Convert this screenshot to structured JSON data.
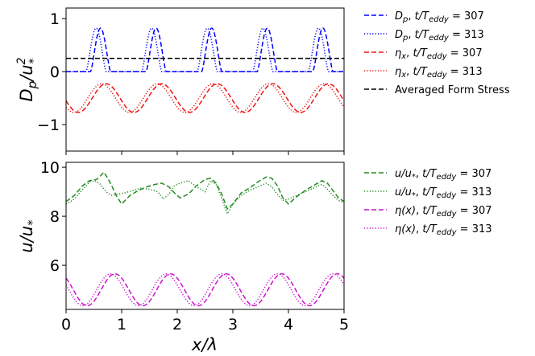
{
  "chart_data": [
    {
      "type": "line",
      "ylabel": "D_p/u_*^2",
      "xlim": [
        0,
        5
      ],
      "ylim": [
        -1.5,
        1.2
      ],
      "yticks": [
        -1,
        0,
        1
      ],
      "grid": false,
      "legend_location": "right-outside-top",
      "series": [
        {
          "name": "D_p, t/T_eddy = 307",
          "color": "#0000ff",
          "dash": "dashed",
          "kind": "pressure",
          "phase": 0.62,
          "width": 0.18,
          "amplitude": 0.82
        },
        {
          "name": "D_p, t/T_eddy = 313",
          "color": "#0000ff",
          "dash": "dotted",
          "kind": "pressure",
          "phase": 0.54,
          "width": 0.18,
          "amplitude": 0.82
        },
        {
          "name": "η_x, t/T_eddy = 307",
          "color": "#ee1111",
          "dash": "dashed",
          "kind": "sine",
          "mean": -0.5,
          "amplitude": 0.27,
          "crest": 0.72
        },
        {
          "name": "η_x, t/T_eddy = 313",
          "color": "#ee1111",
          "dash": "dotted",
          "kind": "sine",
          "mean": -0.5,
          "amplitude": 0.27,
          "crest": 0.64
        },
        {
          "name": "Averaged Form Stress",
          "color": "#000000",
          "dash": "dashed",
          "kind": "constant",
          "value": 0.25
        }
      ]
    },
    {
      "type": "line",
      "xlabel": "x/λ",
      "ylabel": "u/u_*",
      "xlim": [
        0,
        5
      ],
      "ylim": [
        4.2,
        10.2
      ],
      "xticks": [
        0,
        1,
        2,
        3,
        4,
        5
      ],
      "yticks": [
        6,
        8,
        10
      ],
      "grid": false,
      "legend_location": "right-outside-top",
      "series": [
        {
          "name": "u/u_*, t/T_eddy = 307",
          "color": "#228b22",
          "dash": "dashed",
          "x": [
            0,
            0.15,
            0.3,
            0.42,
            0.55,
            0.62,
            0.68,
            0.75,
            0.82,
            0.9,
            1.0,
            1.15,
            1.3,
            1.45,
            1.6,
            1.72,
            1.85,
            1.95,
            2.05,
            2.2,
            2.35,
            2.5,
            2.6,
            2.7,
            2.8,
            2.9,
            3.0,
            3.15,
            3.3,
            3.45,
            3.6,
            3.7,
            3.8,
            3.9,
            4.0,
            4.15,
            4.3,
            4.45,
            4.6,
            4.7,
            4.8,
            4.9,
            5.0
          ],
          "values": [
            8.6,
            8.85,
            9.25,
            9.45,
            9.5,
            9.65,
            9.8,
            9.55,
            9.25,
            8.85,
            8.5,
            8.85,
            9.05,
            9.2,
            9.3,
            9.35,
            9.2,
            8.95,
            8.75,
            8.9,
            9.25,
            9.5,
            9.55,
            9.35,
            8.9,
            8.3,
            8.5,
            8.95,
            9.15,
            9.4,
            9.6,
            9.55,
            9.25,
            8.75,
            8.5,
            8.8,
            9.05,
            9.25,
            9.45,
            9.35,
            9.05,
            8.75,
            8.6
          ]
        },
        {
          "name": "u/u_*, t/T_eddy = 313",
          "color": "#228b22",
          "dash": "dotted",
          "x": [
            0,
            0.15,
            0.3,
            0.42,
            0.52,
            0.62,
            0.72,
            0.82,
            0.92,
            1.05,
            1.2,
            1.35,
            1.5,
            1.65,
            1.75,
            1.85,
            1.95,
            2.05,
            2.2,
            2.35,
            2.5,
            2.6,
            2.7,
            2.82,
            2.9,
            3.0,
            3.15,
            3.3,
            3.45,
            3.6,
            3.7,
            3.8,
            3.9,
            4.0,
            4.15,
            4.3,
            4.45,
            4.6,
            4.7,
            4.8,
            4.9,
            5.0
          ],
          "values": [
            8.5,
            8.7,
            9.1,
            9.4,
            9.45,
            9.3,
            9.0,
            8.85,
            8.9,
            8.95,
            9.05,
            9.15,
            9.1,
            9.0,
            8.7,
            8.9,
            9.25,
            9.35,
            9.45,
            9.2,
            9.0,
            9.45,
            9.3,
            8.6,
            8.1,
            8.5,
            8.85,
            9.05,
            9.2,
            9.35,
            9.2,
            8.9,
            8.65,
            8.7,
            8.85,
            9.0,
            9.15,
            9.3,
            9.1,
            8.85,
            8.65,
            8.55
          ]
        },
        {
          "name": "η(x), t/T_eddy = 307",
          "color": "#cc11cc",
          "dash": "dashed",
          "kind": "sine",
          "mean": 5.0,
          "amplitude": 0.65,
          "crest": 0.88
        },
        {
          "name": "η(x), t/T_eddy = 313",
          "color": "#cc11cc",
          "dash": "dotted",
          "kind": "sine",
          "mean": 5.0,
          "amplitude": 0.65,
          "crest": 0.8
        }
      ]
    }
  ]
}
